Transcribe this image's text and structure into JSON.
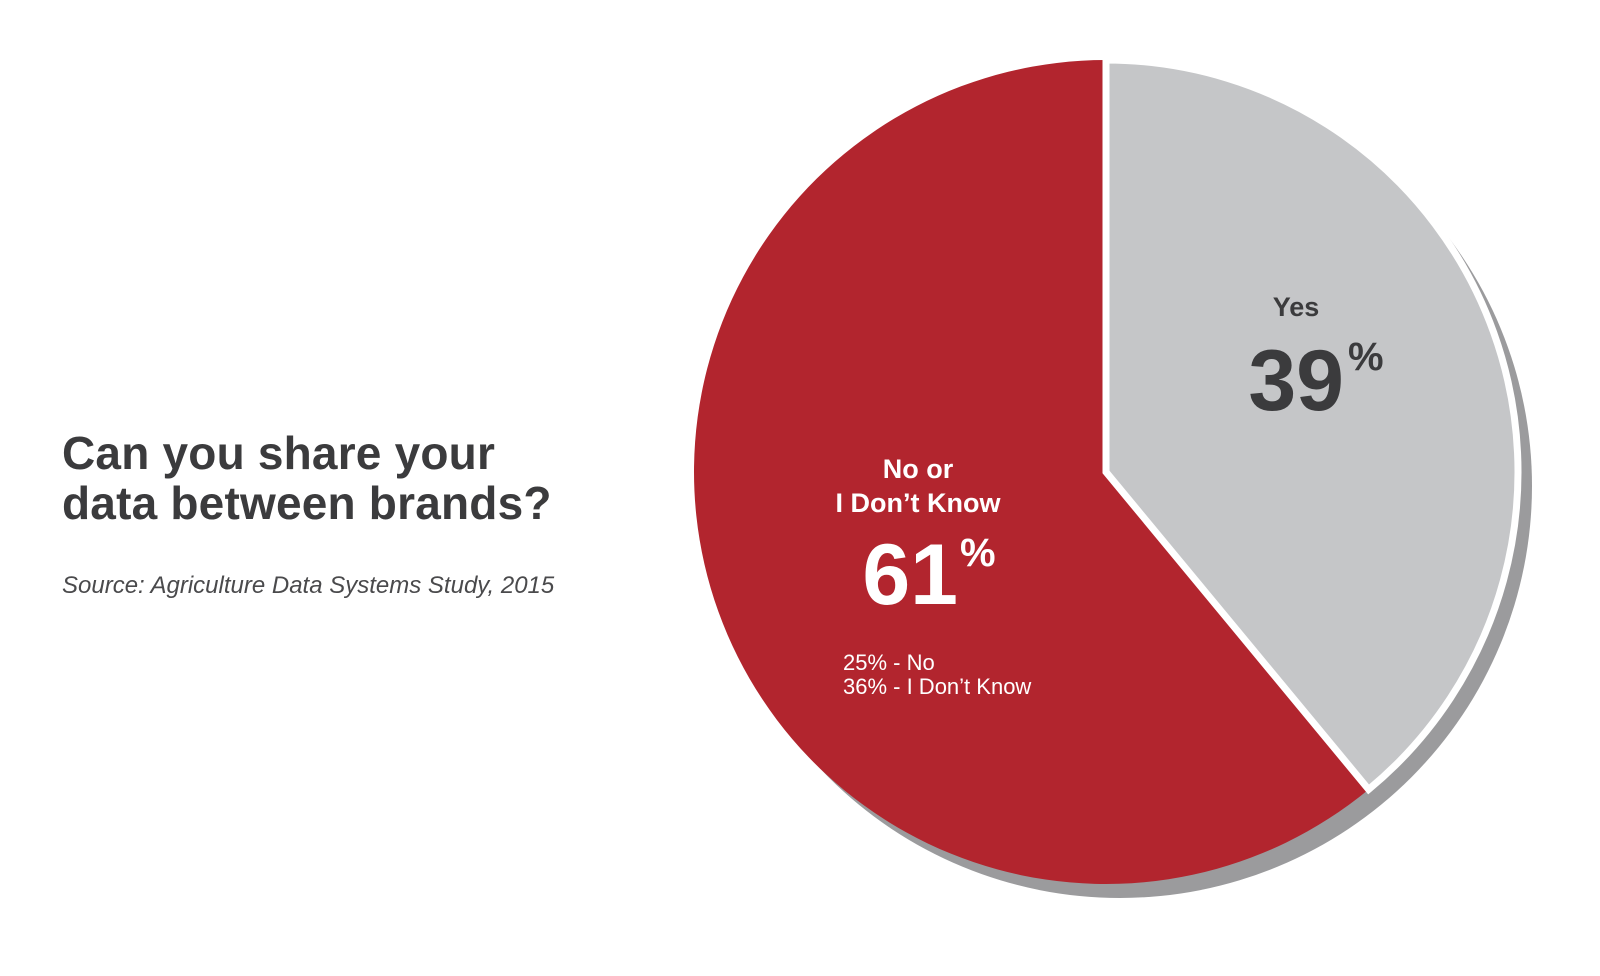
{
  "chart_data": {
    "type": "pie",
    "title_lines": [
      "Can you share your",
      "data between brands?"
    ],
    "source": "Source: Agriculture Data Systems Study, 2015",
    "slices": [
      {
        "label": "Yes",
        "value": 39,
        "value_text": "39",
        "pct_sign": "%",
        "color": "#c5c6c8",
        "text_color": "#3b3b3d"
      },
      {
        "label_lines": [
          "No or",
          "I Don’t Know"
        ],
        "value": 61,
        "value_text": "61",
        "pct_sign": "%",
        "color": "#b2252e",
        "text_color": "#ffffff",
        "breakdown": [
          "25% - No",
          "36% - I Don’t Know"
        ]
      }
    ],
    "shadow_color": "#9b9b9d"
  }
}
